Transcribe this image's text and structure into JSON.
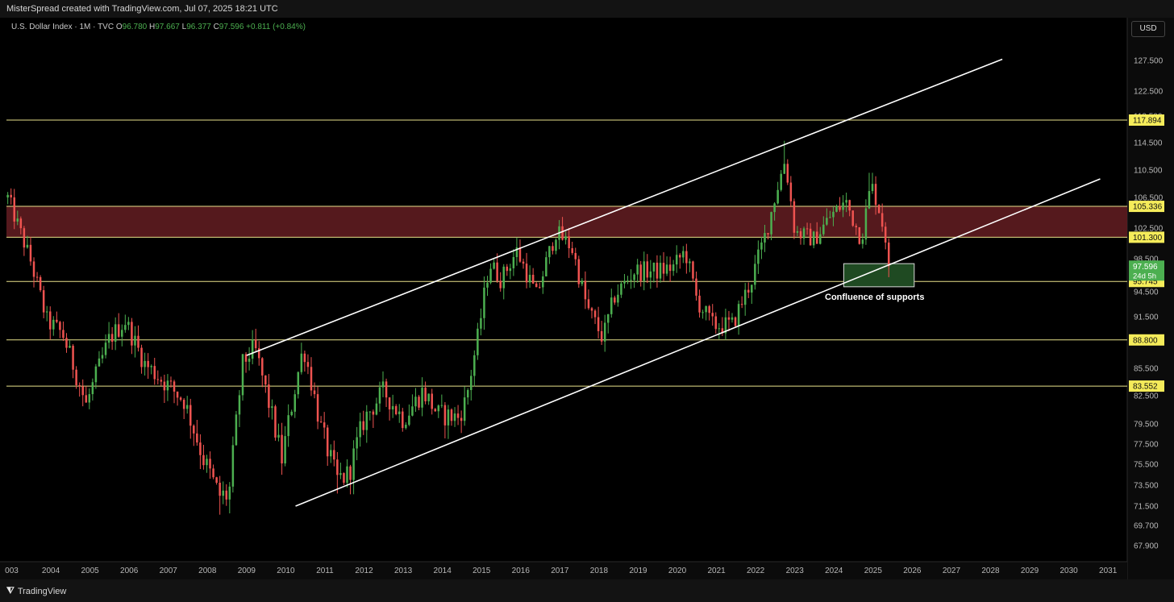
{
  "header": {
    "credit": "MisterSpread created with TradingView.com, Jul 07, 2025 18:21 UTC"
  },
  "legend": {
    "symbol": "U.S. Dollar Index · 1M · TVC",
    "o_label": "O",
    "o": "96.780",
    "h_label": "H",
    "h": "97.667",
    "l_label": "L",
    "l": "96.377",
    "c_label": "C",
    "c": "97.596",
    "change": "+0.811 (+0.84%)"
  },
  "currency_button": "USD",
  "footer": {
    "brand": "TradingView",
    "logo": "tradingview-logo-icon"
  },
  "colors": {
    "background": "#000000",
    "up_candle": "#4caf50",
    "down_candle": "#ef5350",
    "level_line": "#e8e18a",
    "resistance_zone": "#5a1a1f",
    "support_box": "#1f4a22",
    "channel_line": "#ffffff",
    "level_badge_bg": "#f5ec5a",
    "current_price_bg": "#4caf50"
  },
  "chart_data": {
    "type": "candlestick",
    "title": "U.S. Dollar Index · 1M · TVC",
    "xlabel": "",
    "ylabel": "",
    "x_ticks": [
      "003",
      "2004",
      "2005",
      "2006",
      "2007",
      "2008",
      "2009",
      "2010",
      "2011",
      "2012",
      "2013",
      "2014",
      "2015",
      "2016",
      "2017",
      "2018",
      "2019",
      "2020",
      "2021",
      "2022",
      "2023",
      "2024",
      "2025",
      "2026",
      "2027",
      "2028",
      "2029",
      "2030",
      "2031"
    ],
    "y_ticks": [
      "127.500",
      "122.500",
      "118.500",
      "114.500",
      "110.500",
      "106.500",
      "102.500",
      "98.500",
      "94.500",
      "91.500",
      "88.500",
      "85.500",
      "82.500",
      "79.500",
      "77.500",
      "75.500",
      "73.500",
      "71.500",
      "69.700",
      "67.900"
    ],
    "ylim": [
      67.0,
      131.0
    ],
    "xlim": [
      2003.0,
      2031.9
    ],
    "horizontal_levels": [
      117.894,
      105.336,
      101.3,
      95.745,
      88.8,
      83.552
    ],
    "resistance_zone": [
      101.3,
      105.336
    ],
    "current_price": {
      "value": "97.596",
      "countdown": "24d 5h"
    },
    "channel": {
      "upper": {
        "start": [
          2009.0,
          87.0
        ],
        "end": [
          2028.3,
          127.7
        ]
      },
      "lower": {
        "start": [
          2010.25,
          71.5
        ],
        "end": [
          2030.8,
          109.2
        ]
      }
    },
    "annotation": {
      "text": "Confluence of supports",
      "box": {
        "x0": 2024.25,
        "x1": 2026.05,
        "y0": 95.1,
        "y1": 97.9
      }
    },
    "series": [
      {
        "name": "U.S. Dollar Index",
        "anchors_close": [
          [
            2002.9,
            106.5
          ],
          [
            2003.5,
            98
          ],
          [
            2003.9,
            91
          ],
          [
            2004.3,
            89.5
          ],
          [
            2004.9,
            81.5
          ],
          [
            2005.5,
            89
          ],
          [
            2005.9,
            91
          ],
          [
            2006.4,
            86
          ],
          [
            2006.9,
            84
          ],
          [
            2007.4,
            82
          ],
          [
            2007.9,
            76
          ],
          [
            2008.3,
            72.5
          ],
          [
            2008.55,
            72.5
          ],
          [
            2008.9,
            86
          ],
          [
            2009.2,
            88
          ],
          [
            2009.9,
            76
          ],
          [
            2010.45,
            88
          ],
          [
            2010.9,
            79
          ],
          [
            2011.3,
            74
          ],
          [
            2011.6,
            74.5
          ],
          [
            2012.0,
            80
          ],
          [
            2012.5,
            83
          ],
          [
            2013.0,
            80
          ],
          [
            2013.5,
            83
          ],
          [
            2013.9,
            80.5
          ],
          [
            2014.4,
            80.2
          ],
          [
            2014.6,
            82
          ],
          [
            2014.9,
            89
          ],
          [
            2015.2,
            98
          ],
          [
            2015.5,
            96
          ],
          [
            2015.9,
            99.5
          ],
          [
            2016.4,
            94
          ],
          [
            2016.9,
            102
          ],
          [
            2017.3,
            100
          ],
          [
            2017.7,
            92.5
          ],
          [
            2018.1,
            89
          ],
          [
            2018.4,
            94
          ],
          [
            2018.9,
            97
          ],
          [
            2019.5,
            97
          ],
          [
            2019.9,
            97.5
          ],
          [
            2020.2,
            99.5
          ],
          [
            2020.5,
            93.5
          ],
          [
            2020.9,
            90.5
          ],
          [
            2021.4,
            90.5
          ],
          [
            2021.9,
            96
          ],
          [
            2022.3,
            102.5
          ],
          [
            2022.75,
            112
          ],
          [
            2023.0,
            102
          ],
          [
            2023.5,
            101
          ],
          [
            2023.9,
            104
          ],
          [
            2024.3,
            106
          ],
          [
            2024.7,
            101
          ],
          [
            2024.95,
            108.5
          ],
          [
            2025.15,
            105
          ],
          [
            2025.4,
            99.5
          ],
          [
            2025.55,
            97.596
          ]
        ],
        "swing_extremes": {
          "high_2022": 114.78,
          "low_2008": 70.7,
          "low_2011": 72.7,
          "high_2025": 110.1
        }
      }
    ]
  }
}
